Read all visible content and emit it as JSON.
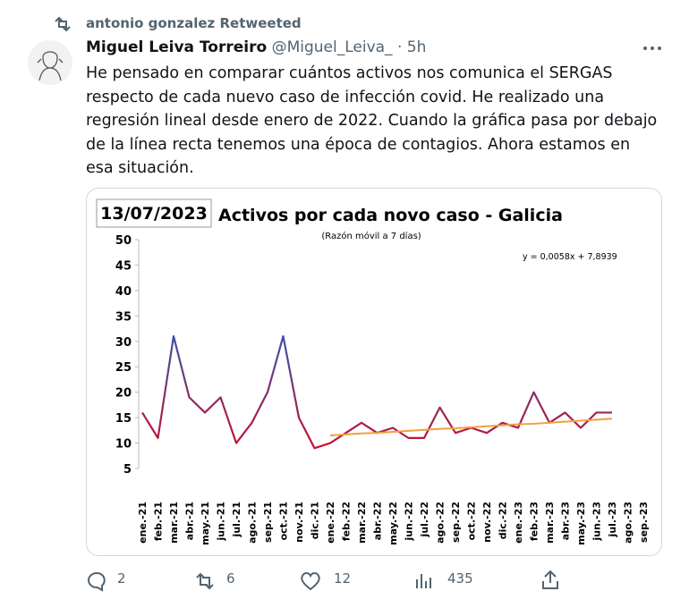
{
  "retweet_label": "antonio gonzalez Retweeted",
  "author": {
    "name": "Miguel Leiva Torreiro",
    "handle": "@Miguel_Leiva_",
    "separator": "·",
    "time": "5h"
  },
  "text": "He pensado en comparar cuántos activos nos comunica el SERGAS respecto de cada nuevo caso de infección covid. He realizado una regresión lineal desde enero de 2022. Cuando la gráfica pasa por debajo de la línea recta tenemos una época de contagios. Ahora estamos en esa situación.",
  "stats": {
    "replies": 2,
    "retweets": 6,
    "likes": 12,
    "views": 435
  },
  "chart_data": {
    "type": "line",
    "date_label": "13/07/2023",
    "title": "Activos por cada novo caso - Galicia",
    "subtitle": "(Razón móvil a 7 días)",
    "equation": "y = 0,0058x + 7,8939",
    "categories": [
      "ene.-21",
      "feb.-21",
      "mar.-21",
      "abr.-21",
      "may.-21",
      "jun.-21",
      "jul.-21",
      "ago.-21",
      "sep.-21",
      "oct.-21",
      "nov.-21",
      "dic.-21",
      "ene.-22",
      "feb.-22",
      "mar.-22",
      "abr.-22",
      "may.-22",
      "jun.-22",
      "jul.-22",
      "ago.-22",
      "sep.-22",
      "oct.-22",
      "nov.-22",
      "dic.-22",
      "ene.-23",
      "feb.-23",
      "mar.-23",
      "abr.-23",
      "may.-23",
      "jun.-23",
      "jul.-23",
      "ago.-23",
      "sep.-23"
    ],
    "series": [
      {
        "colors": [
          "#c8102e",
          "#1f5fbf"
        ],
        "values": [
          16,
          11,
          31,
          19,
          16,
          19,
          10,
          14,
          20,
          31,
          15,
          9,
          10,
          12,
          14,
          12,
          13,
          11,
          11,
          17,
          12,
          13,
          12,
          14,
          13,
          20,
          14,
          16,
          13,
          16,
          16,
          null,
          null
        ]
      }
    ],
    "trend": {
      "color": "#f0a040",
      "values": [
        null,
        null,
        null,
        null,
        null,
        null,
        null,
        null,
        null,
        null,
        null,
        null,
        11.5,
        11.7,
        11.9,
        12.0,
        12.2,
        12.4,
        12.6,
        12.8,
        12.9,
        13.1,
        13.3,
        13.5,
        13.7,
        13.8,
        14.0,
        14.2,
        14.4,
        14.6,
        14.8,
        null,
        null
      ]
    },
    "ylim": [
      5,
      50
    ],
    "yticks": [
      5,
      10,
      15,
      20,
      25,
      30,
      35,
      40,
      45,
      50
    ],
    "grid": false
  }
}
